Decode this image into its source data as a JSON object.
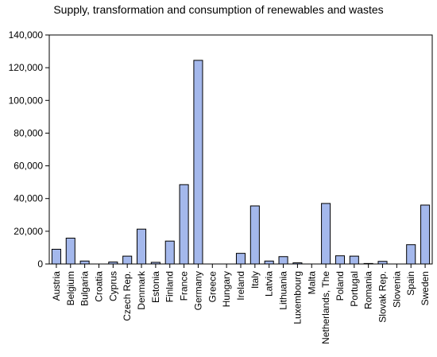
{
  "chart_data": {
    "type": "bar",
    "title": "Supply, transformation and consumption of renewables and wastes",
    "xlabel": "",
    "ylabel": "",
    "ylim": [
      0,
      140000
    ],
    "yticks": [
      0,
      20000,
      40000,
      60000,
      80000,
      100000,
      120000,
      140000
    ],
    "ytick_labels": [
      "0",
      "20,000",
      "40,000",
      "60,000",
      "80,000",
      "100,000",
      "120,000",
      "140,000"
    ],
    "grid": false,
    "legend": "none",
    "bar_color": "#a4b8ec",
    "bar_stroke": "#000000",
    "categories": [
      "Austria",
      "Belgium",
      "Bulgaria",
      "Croatia",
      "Cyprus",
      "Czech Rep.",
      "Denmark",
      "Estonia",
      "Finland",
      "France",
      "Germany",
      "Greece",
      "Hungary",
      "Ireland",
      "Italy",
      "Latvia",
      "Lithuania",
      "Luxembourg",
      "Malta",
      "Netherlands, The",
      "Poland",
      "Portugal",
      "Romania",
      "Slovak Rep.",
      "Slovenia",
      "Spain",
      "Sweden"
    ],
    "values": [
      9000,
      15800,
      1800,
      0,
      1200,
      4800,
      21300,
      1000,
      14000,
      48500,
      124500,
      0,
      0,
      6500,
      35500,
      1800,
      4500,
      700,
      0,
      37000,
      5000,
      4800,
      300,
      1600,
      0,
      11800,
      36000
    ]
  }
}
